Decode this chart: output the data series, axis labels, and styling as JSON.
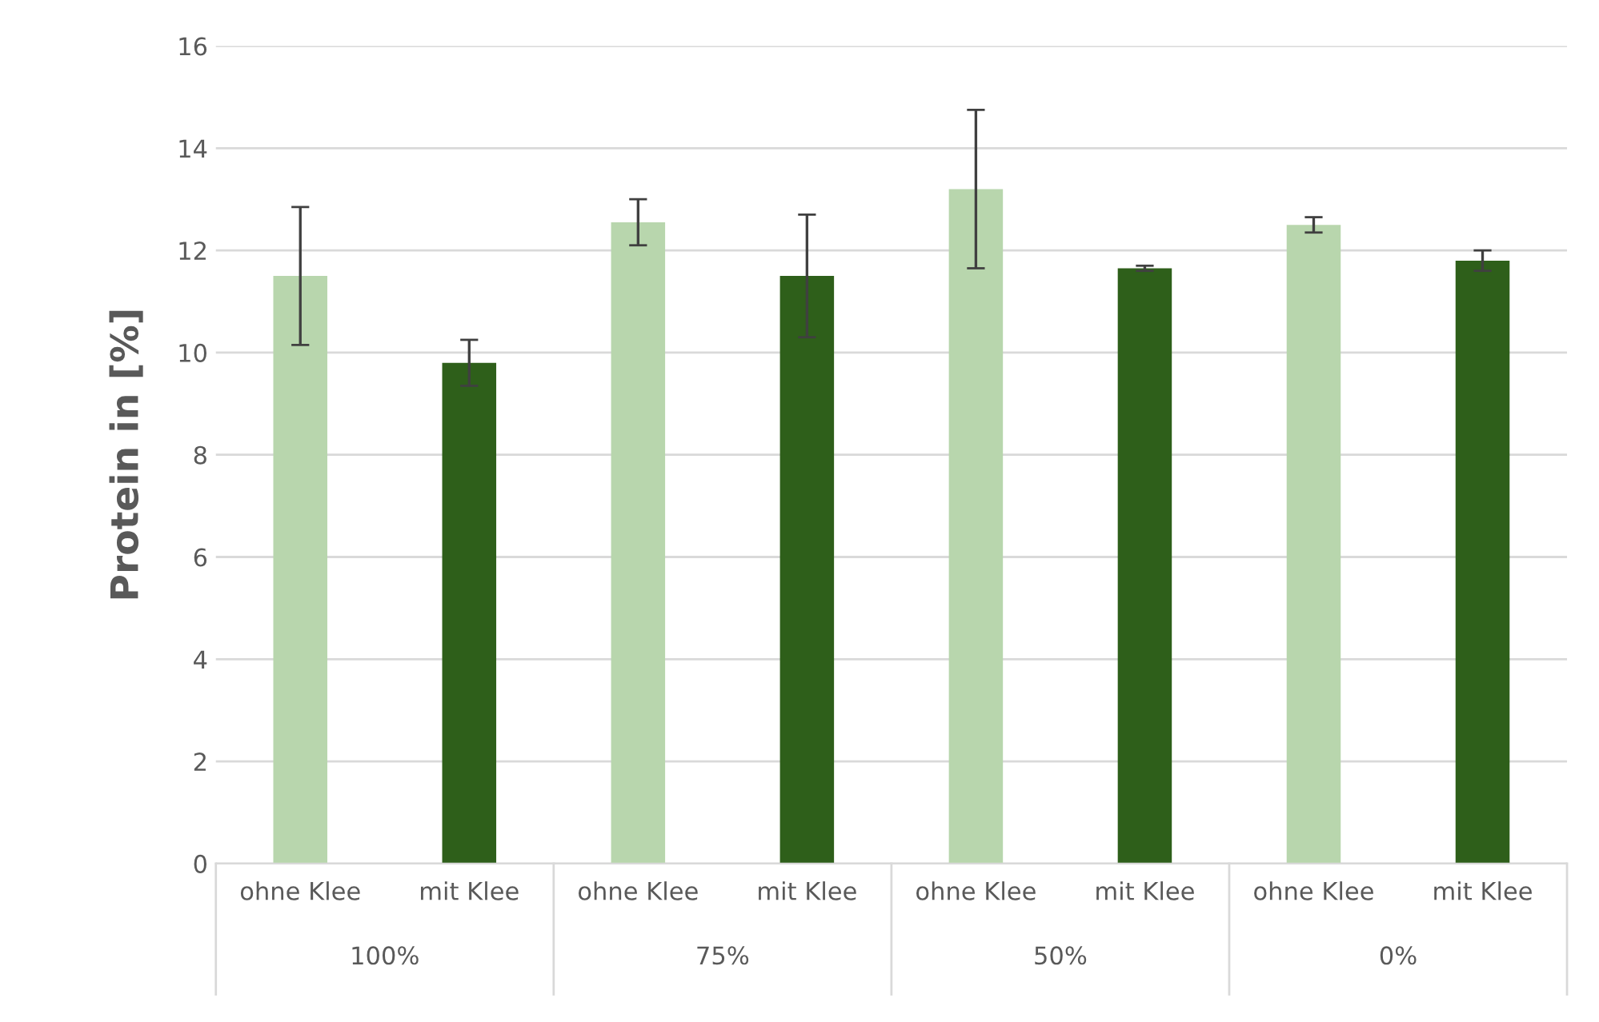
{
  "chart_data": {
    "type": "bar",
    "ylabel": "Protein in [%]",
    "categories": [
      "ohne Klee",
      "mit Klee",
      "ohne Klee",
      "mit Klee",
      "ohne Klee",
      "mit Klee",
      "ohne Klee",
      "mit Klee"
    ],
    "values": [
      11.5,
      9.8,
      12.55,
      11.5,
      13.2,
      11.65,
      12.5,
      11.8
    ],
    "errors": [
      1.35,
      0.45,
      0.45,
      1.2,
      1.55,
      0.05,
      0.15,
      0.2
    ],
    "colors": [
      "#b8d6ad",
      "#2e5f1a",
      "#b8d6ad",
      "#2e5f1a",
      "#b8d6ad",
      "#2e5f1a",
      "#b8d6ad",
      "#2e5f1a"
    ],
    "annotations": [
      "100%",
      "75%",
      "50%",
      "0%"
    ],
    "ylim": [
      0,
      16
    ],
    "yticks": [
      0,
      2,
      4,
      6,
      8,
      10,
      12,
      14,
      16
    ],
    "grid": "y"
  }
}
